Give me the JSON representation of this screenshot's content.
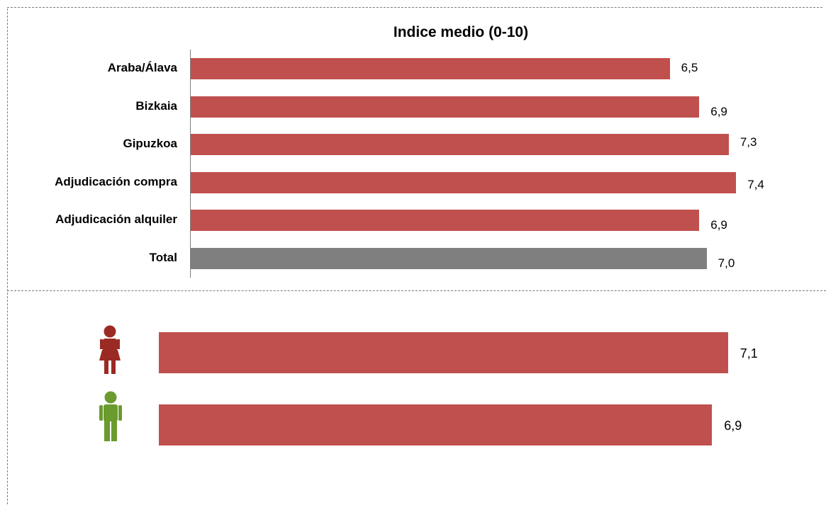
{
  "chart_data": [
    {
      "type": "bar",
      "orientation": "horizontal",
      "title": "Indice medio (0-10)",
      "categories": [
        "Araba/Álava",
        "Bizkaia",
        "Gipuzkoa",
        "Adjudicación compra",
        "Adjudicación alquiler",
        "Total"
      ],
      "values": [
        6.5,
        6.9,
        7.3,
        7.4,
        6.9,
        7.0
      ],
      "value_labels": [
        "6,5",
        "6,9",
        "7,3",
        "7,4",
        "6,9",
        "7,0"
      ],
      "xlim": [
        0,
        8.1
      ],
      "colors": [
        "#c0504d",
        "#c0504d",
        "#c0504d",
        "#c0504d",
        "#c0504d",
        "#7f7f7f"
      ],
      "grid": false,
      "legend": "none"
    },
    {
      "type": "bar",
      "orientation": "horizontal",
      "categories": [
        "female-icon",
        "male-icon"
      ],
      "values": [
        7.1,
        6.9
      ],
      "value_labels": [
        "7,1",
        "6,9"
      ],
      "xlim": [
        0,
        7.65
      ],
      "colors": [
        "#c0504d",
        "#c0504d"
      ],
      "icon_colors": [
        "#9b2a24",
        "#6b9a2e"
      ],
      "grid": false,
      "legend": "none"
    }
  ]
}
